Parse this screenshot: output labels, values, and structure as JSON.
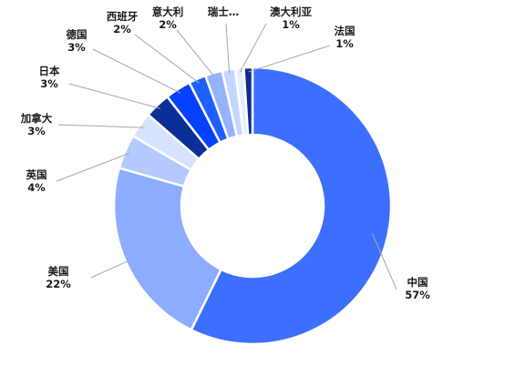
{
  "chart_data": {
    "type": "donut",
    "categories": [
      "中国",
      "美国",
      "英国",
      "加拿大",
      "日本",
      "德国",
      "西班牙",
      "意大利",
      "瑞士",
      "澳大利亚",
      "法国"
    ],
    "values": [
      57,
      22,
      4,
      3,
      3,
      3,
      2,
      2,
      1.5,
      1,
      1
    ],
    "value_labels": [
      "57%",
      "22%",
      "4%",
      "3%",
      "3%",
      "3%",
      "2%",
      "2%",
      "",
      "1%",
      "1%"
    ],
    "category_labels": [
      "中国",
      "美国",
      "英国",
      "加拿大",
      "日本",
      "德国",
      "西班牙",
      "意大利",
      "瑞士…",
      "澳大利亚",
      "法国"
    ],
    "colors": [
      "#3d6fff",
      "#8cacff",
      "#b3c9ff",
      "#d7e2ff",
      "#0a2f96",
      "#0341ff",
      "#1f5fff",
      "#94b3ff",
      "#c4d6ff",
      "#e6eeff",
      "#0d2c8a"
    ],
    "title": "",
    "legend": "none"
  }
}
